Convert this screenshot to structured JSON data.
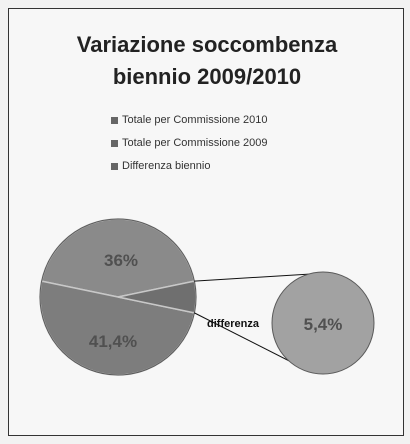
{
  "chart_data": {
    "type": "pie",
    "title": [
      "Variazione soccombenza",
      "biennio 2009/2010"
    ],
    "legend": [
      "Totale per Commissione 2010",
      "Totale per Commissione 2009",
      "Differenza biennio"
    ],
    "slices": [
      {
        "series": "Totale per Commissione 2010",
        "label": "36%",
        "value": 36.0
      },
      {
        "series": "Totale per Commissione 2009",
        "label": "41,4%",
        "value": 41.4
      },
      {
        "series": "Differenza biennio",
        "label": "5,4%",
        "value": 5.4
      }
    ],
    "secondary_label": "differenza",
    "colors": {
      "slice_2010": "#8a8a8a",
      "slice_2009": "#7d7d7d",
      "slice_diff": "#6f6f6f",
      "detail_pie": "#a2a2a2",
      "label_text": "#505050",
      "divider": "#c8c8c8"
    }
  }
}
